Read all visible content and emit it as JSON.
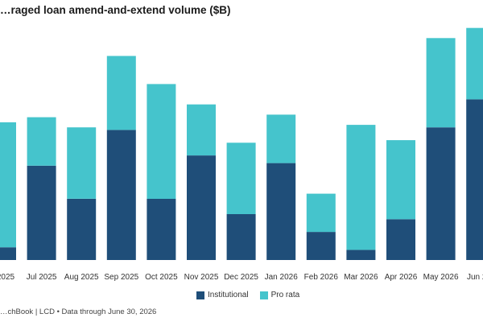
{
  "chart_data": {
    "type": "bar",
    "stacked": true,
    "title": "…raged loan amend-and-extend volume ($B)",
    "categories": [
      "…2025",
      "Jul 2025",
      "Aug 2025",
      "Sep 2025",
      "Oct 2025",
      "Nov 2025",
      "Dec 2025",
      "Jan 2026",
      "Feb 2026",
      "Mar 2026",
      "Apr 2026",
      "May 2026",
      "Jun 2…"
    ],
    "series": [
      {
        "name": "Institutional",
        "color": "#1f4e79",
        "values": [
          0.5,
          3.7,
          2.4,
          5.1,
          2.4,
          4.1,
          1.8,
          3.8,
          1.1,
          0.4,
          1.6,
          5.2,
          6.3
        ]
      },
      {
        "name": "Pro rata",
        "color": "#45c4cc",
        "values": [
          4.9,
          1.9,
          2.8,
          2.9,
          4.5,
          2.0,
          2.8,
          1.9,
          1.5,
          4.9,
          3.1,
          3.5,
          2.8
        ]
      }
    ],
    "ylim": [
      0,
      9.5
    ],
    "grid": false,
    "legend_position": "bottom-center",
    "source": "…chBook | LCD • Data through June 30, 2026"
  }
}
